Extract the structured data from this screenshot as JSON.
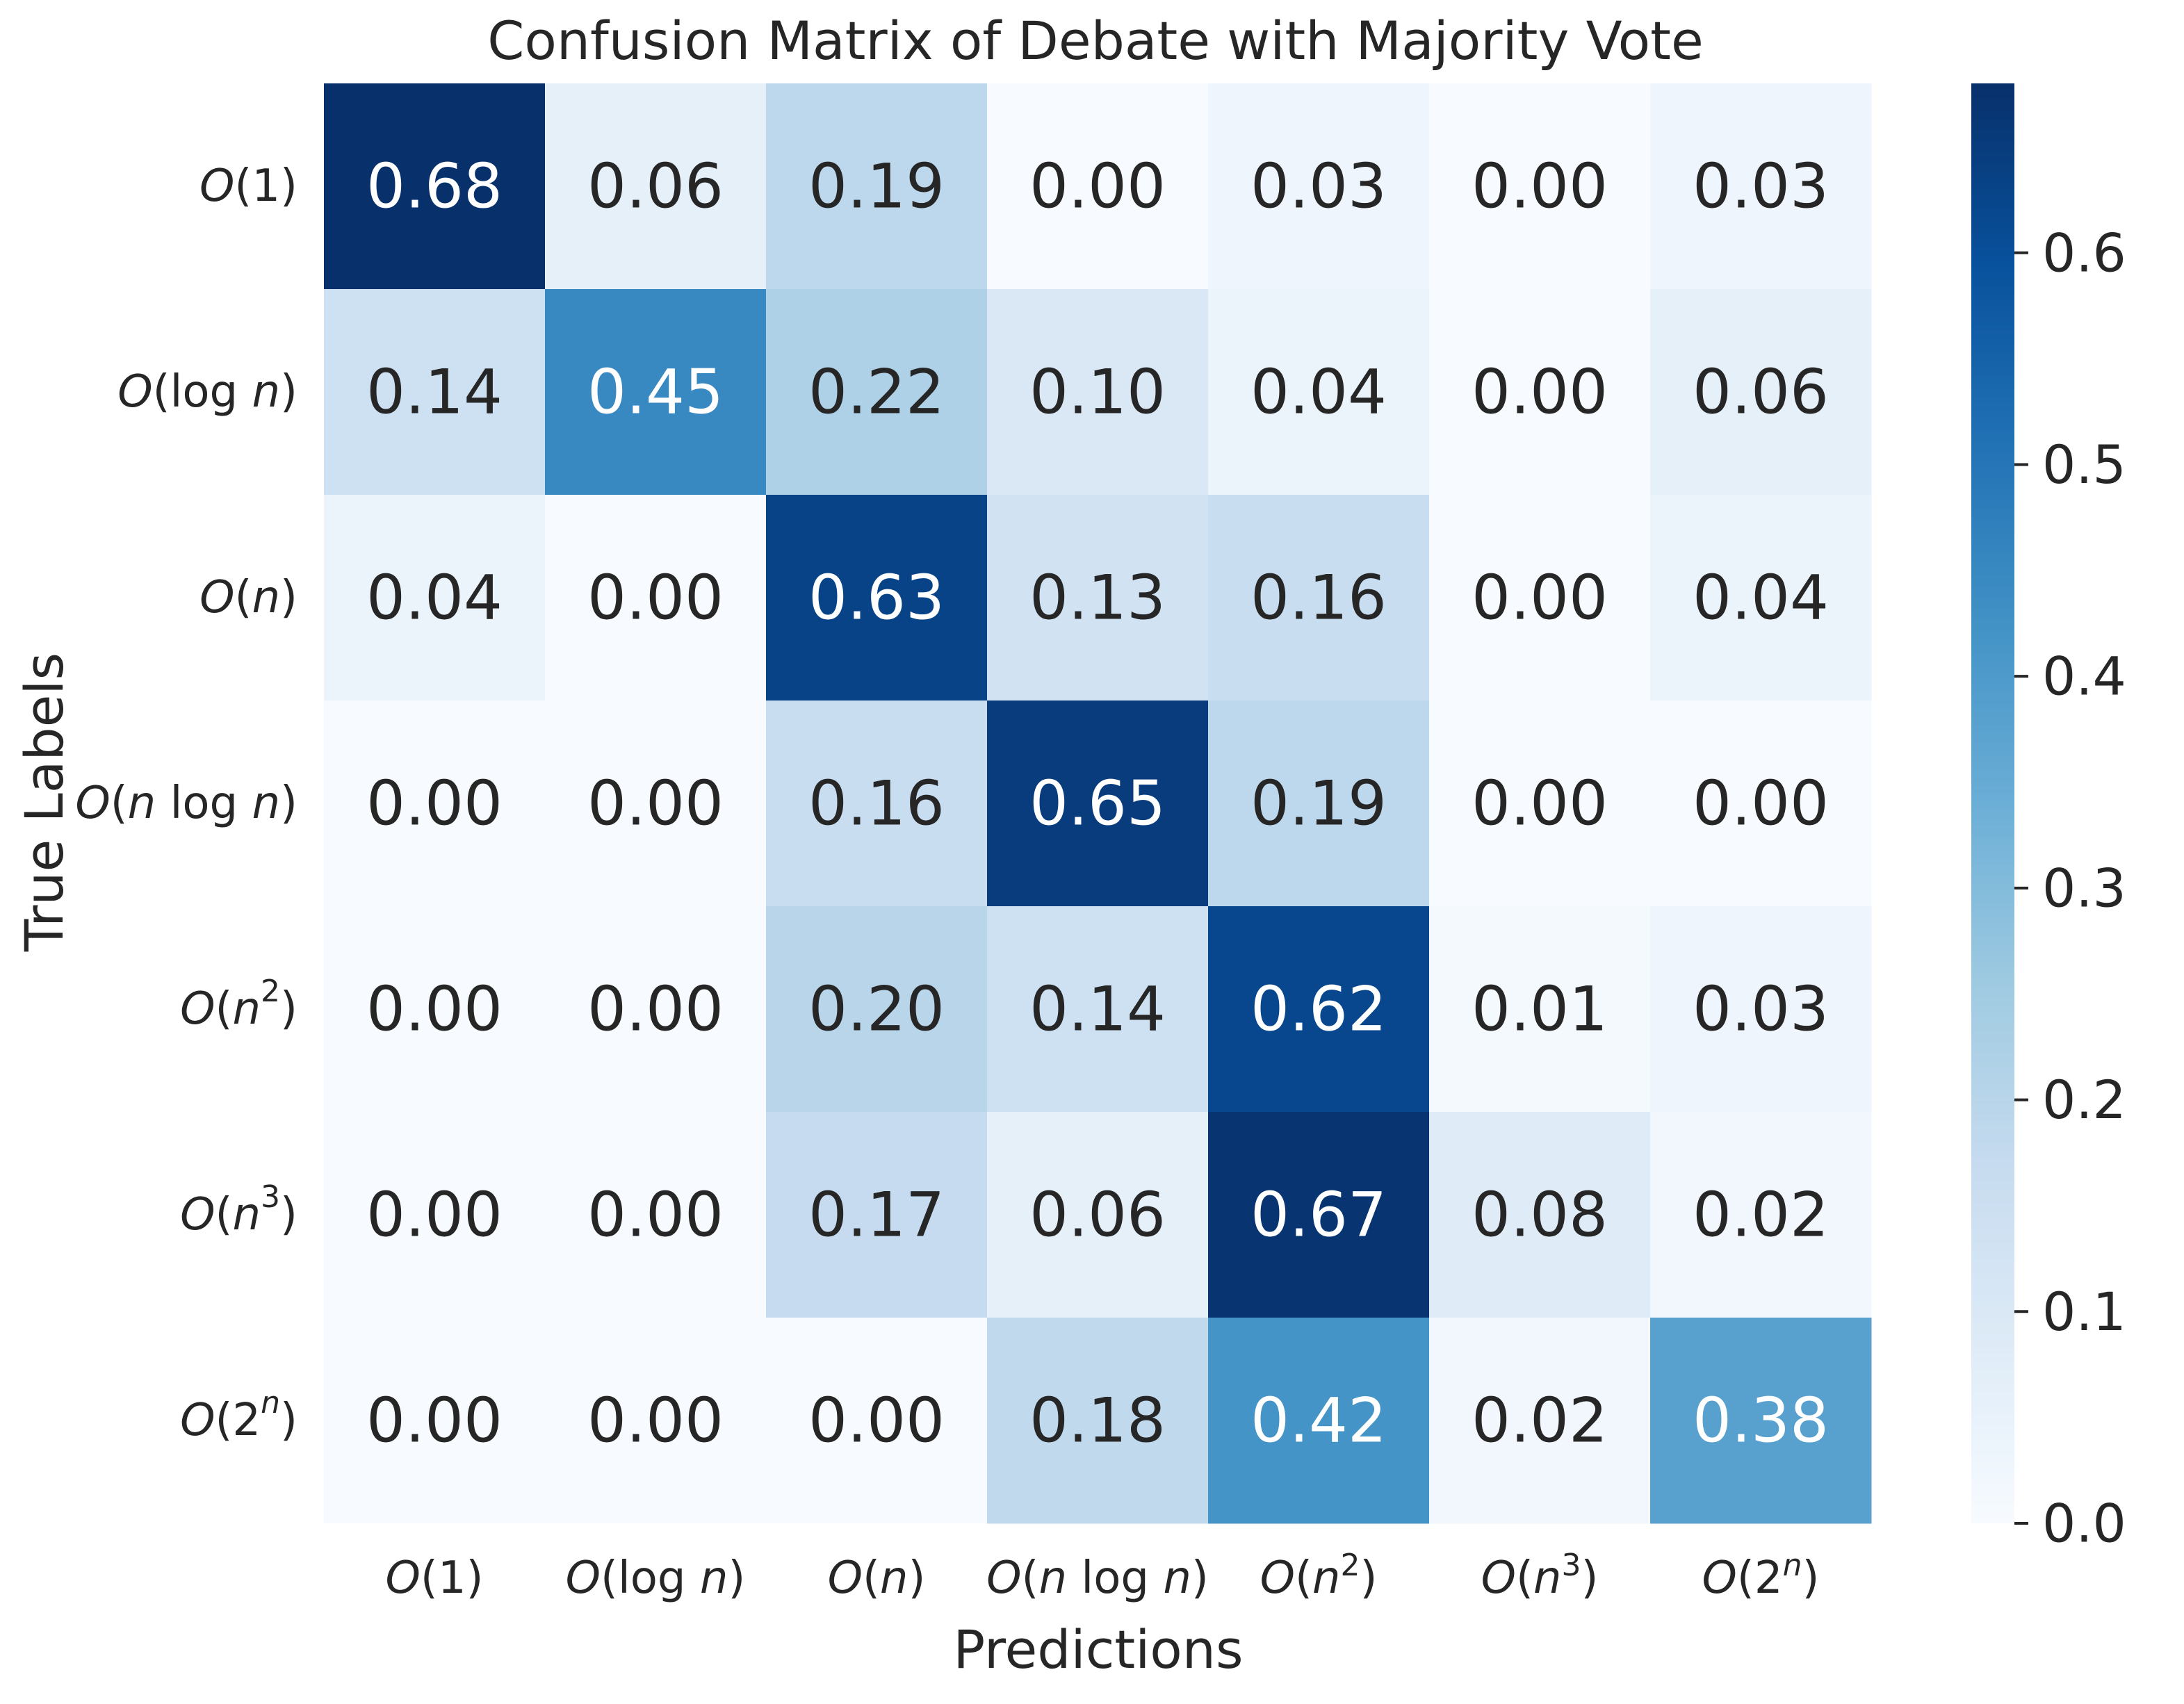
{
  "chart_data": {
    "type": "heatmap",
    "title": "Confusion Matrix of Debate with Majority Vote",
    "xlabel": "Predictions",
    "ylabel": "True Labels",
    "x_categories": [
      "O(1)",
      "O(log n)",
      "O(n)",
      "O(n log n)",
      "O(n²)",
      "O(n³)",
      "O(2ⁿ)"
    ],
    "y_categories": [
      "O(1)",
      "O(log n)",
      "O(n)",
      "O(n log n)",
      "O(n²)",
      "O(n³)",
      "O(2ⁿ)"
    ],
    "values": [
      [
        0.68,
        0.06,
        0.19,
        0.0,
        0.03,
        0.0,
        0.03
      ],
      [
        0.14,
        0.45,
        0.22,
        0.1,
        0.04,
        0.0,
        0.06
      ],
      [
        0.04,
        0.0,
        0.63,
        0.13,
        0.16,
        0.0,
        0.04
      ],
      [
        0.0,
        0.0,
        0.16,
        0.65,
        0.19,
        0.0,
        0.0
      ],
      [
        0.0,
        0.0,
        0.2,
        0.14,
        0.62,
        0.01,
        0.03
      ],
      [
        0.0,
        0.0,
        0.17,
        0.06,
        0.67,
        0.08,
        0.02
      ],
      [
        0.0,
        0.0,
        0.0,
        0.18,
        0.42,
        0.02,
        0.38
      ]
    ],
    "colormap": "Blues",
    "colorbar": {
      "vmin": 0.0,
      "vmax": 0.68,
      "ticks": [
        0.0,
        0.1,
        0.2,
        0.3,
        0.4,
        0.5,
        0.6
      ],
      "tick_labels": [
        "0.0",
        "0.1",
        "0.2",
        "0.3",
        "0.4",
        "0.5",
        "0.6"
      ]
    },
    "grid": false,
    "legend": "colorbar-right"
  },
  "colors": {
    "text_dark": "#262626",
    "text_light": "#ffffff",
    "blues": [
      "#f7fbff",
      "#deebf7",
      "#c6dbef",
      "#9ecae1",
      "#6baed6",
      "#4292c6",
      "#2171b5",
      "#08519c",
      "#08306b"
    ]
  }
}
